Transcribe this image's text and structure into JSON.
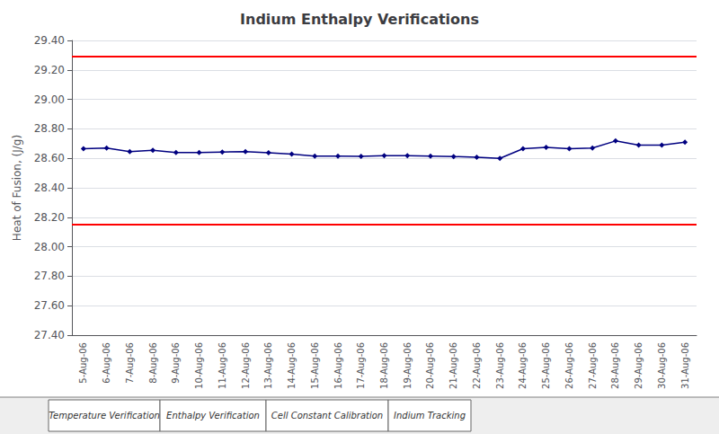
{
  "chart_data": {
    "type": "line",
    "title": "Indium Enthalpy Verifications",
    "y_label": "Heat of Fusion, (J/g)",
    "categories": [
      "5-Aug-06",
      "6-Aug-06",
      "7-Aug-06",
      "8-Aug-06",
      "9-Aug-06",
      "10-Aug-06",
      "11-Aug-06",
      "12-Aug-06",
      "13-Aug-06",
      "14-Aug-06",
      "15-Aug-06",
      "16-Aug-06",
      "17-Aug-06",
      "18-Aug-06",
      "19-Aug-06",
      "20-Aug-06",
      "21-Aug-06",
      "22-Aug-06",
      "23-Aug-06",
      "24-Aug-06",
      "25-Aug-06",
      "26-Aug-06",
      "27-Aug-06",
      "28-Aug-06",
      "29-Aug-06",
      "30-Aug-06",
      "31-Aug-06"
    ],
    "values": [
      28.665,
      28.67,
      28.645,
      28.655,
      28.64,
      28.64,
      28.643,
      28.645,
      28.638,
      28.628,
      28.615,
      28.615,
      28.613,
      28.618,
      28.618,
      28.615,
      28.612,
      28.607,
      28.6,
      28.665,
      28.675,
      28.665,
      28.67,
      28.718,
      28.69,
      28.69,
      28.71
    ],
    "color": "#000080",
    "marker": "diamond",
    "reference_lines": [
      {
        "value": 29.29,
        "color": "#ff0000"
      },
      {
        "value": 28.15,
        "color": "#ff0000"
      }
    ],
    "ylim": [
      27.4,
      29.4
    ],
    "yticks": [
      {
        "value": 27.4,
        "label": "27.40"
      },
      {
        "value": 27.6,
        "label": "27.60"
      },
      {
        "value": 27.8,
        "label": "27.80"
      },
      {
        "value": 28.0,
        "label": "28.00"
      },
      {
        "value": 28.2,
        "label": "28.20"
      },
      {
        "value": 28.4,
        "label": "28.40"
      },
      {
        "value": 28.6,
        "label": "28.60"
      },
      {
        "value": 28.8,
        "label": "28.80"
      },
      {
        "value": 29.0,
        "label": "29.00"
      },
      {
        "value": 29.2,
        "label": "29.20"
      },
      {
        "value": 29.4,
        "label": "29.40"
      }
    ],
    "grid": true,
    "annotations": [
      "Temperature Verification",
      "Enthalpy Verification",
      "Cell Constant Calibration",
      "Indium Tracking"
    ]
  }
}
